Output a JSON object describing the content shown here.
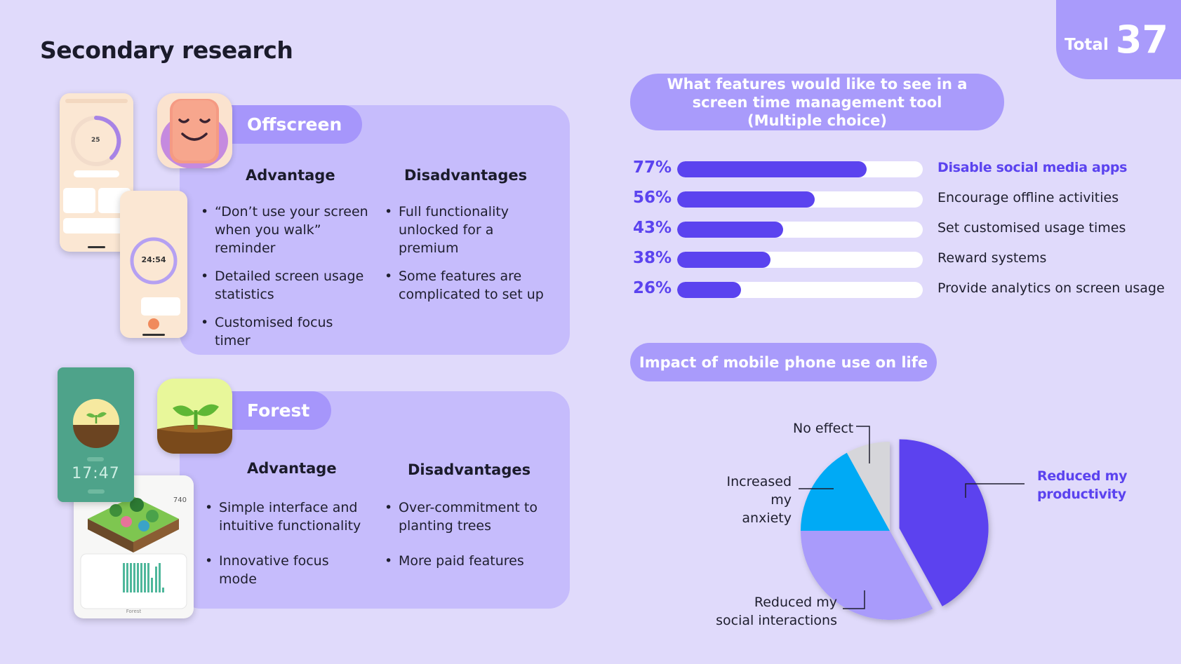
{
  "slide": {
    "title": "Secondary research",
    "total_label": "Total",
    "total_value": "37"
  },
  "offscreen": {
    "name": "Offscreen",
    "advantage_heading": "Advantage",
    "disadvantage_heading": "Disadvantages",
    "advantages": [
      "“Don’t use your screen when you walk” reminder",
      "Detailed screen usage statistics",
      "Customised focus timer"
    ],
    "disadvantages": [
      "Full functionality unlocked for a premium",
      "Some features are complicated to set up"
    ],
    "phone_timer": "24:54",
    "phone_counter": "25"
  },
  "forest": {
    "name": "Forest",
    "advantage_heading": "Advantage",
    "disadvantage_heading": "Disadvantages",
    "advantages": [
      "Simple interface and intuitive functionality",
      "Innovative focus mode"
    ],
    "disadvantages": [
      "Over-commitment to planting trees",
      "More paid features"
    ],
    "phone_time": "17:47",
    "phone_minutes": "740",
    "phone_brand": "Forest"
  },
  "features_survey": {
    "question": "What features would like to see in a screen time management tool (Multiple choice)",
    "items": [
      {
        "pct": "77%",
        "value": 77,
        "label": "Disable social media apps",
        "highlight": true
      },
      {
        "pct": "56%",
        "value": 56,
        "label": "Encourage offline activities",
        "highlight": false
      },
      {
        "pct": "43%",
        "value": 43,
        "label": "Set customised usage times",
        "highlight": false
      },
      {
        "pct": "38%",
        "value": 38,
        "label": "Reward systems",
        "highlight": false
      },
      {
        "pct": "26%",
        "value": 26,
        "label": "Provide analytics on screen usage",
        "highlight": false
      }
    ]
  },
  "impact_survey": {
    "question": "Impact of mobile phone use on life"
  },
  "chart_data": {
    "type": "pie",
    "title": "Impact of mobile phone use on life",
    "slices": [
      {
        "label": "Reduced my productivity",
        "value": 42,
        "color": "#5b43ef",
        "highlight": true
      },
      {
        "label": "Reduced my social interactions",
        "value": 33,
        "color": "#a99bfb"
      },
      {
        "label": "Increased my anxiety",
        "value": 17,
        "color": "#00aaf5"
      },
      {
        "label": "No effect",
        "value": 8,
        "color": "#d6d6da"
      }
    ],
    "labels_display": {
      "no_effect": "No effect",
      "anxiety_1": "Increased",
      "anxiety_2": "my anxiety",
      "social_1": "Reduced my",
      "social_2": "social interactions",
      "productivity_1": "Reduced my",
      "productivity_2": "productivity"
    }
  }
}
